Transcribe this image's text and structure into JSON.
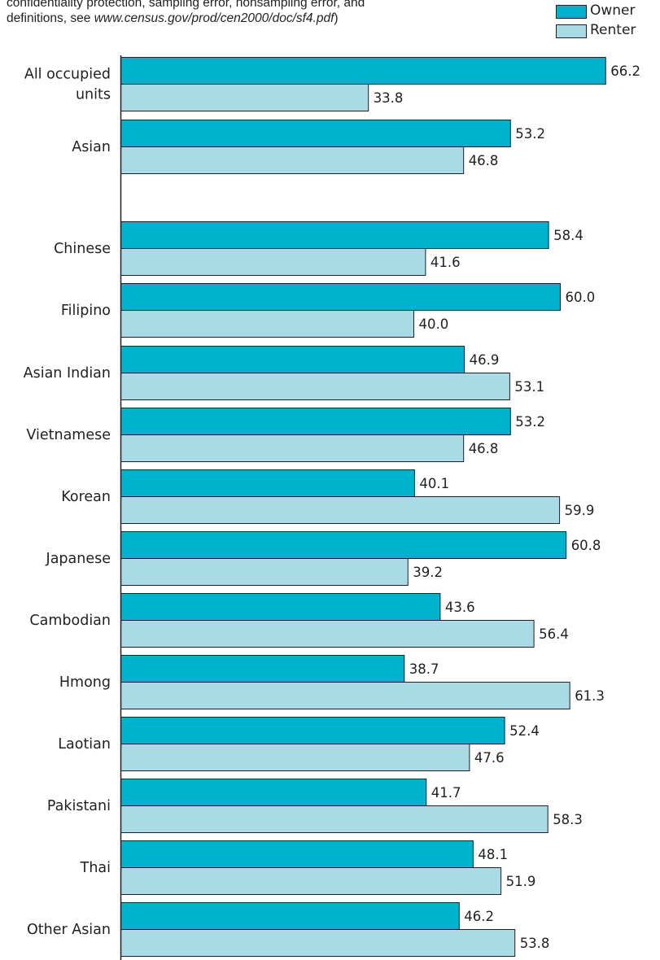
{
  "note": {
    "line1": "confidentiality protection, sampling error, nonsampling error, and",
    "line2_prefix": "definitions, see ",
    "line2_url": "www.census.gov/prod/cen2000/doc/sf4.pdf",
    "line2_suffix": ")"
  },
  "colors": {
    "owner": "#00b2cd",
    "renter": "#a9dbe6",
    "outline": "#231f20"
  },
  "chart_data": {
    "type": "bar",
    "orientation": "horizontal",
    "categories": [
      "All occupied units",
      "Asian",
      "Chinese",
      "Filipino",
      "Asian Indian",
      "Vietnamese",
      "Korean",
      "Japanese",
      "Cambodian",
      "Hmong",
      "Laotian",
      "Pakistani",
      "Thai",
      "Other Asian"
    ],
    "category_labels": [
      [
        "All occupied",
        "units"
      ],
      [
        "Asian"
      ],
      [
        "Chinese"
      ],
      [
        "Filipino"
      ],
      [
        "Asian Indian"
      ],
      [
        "Vietnamese"
      ],
      [
        "Korean"
      ],
      [
        "Japanese"
      ],
      [
        "Cambodian"
      ],
      [
        "Hmong"
      ],
      [
        "Laotian"
      ],
      [
        "Pakistani"
      ],
      [
        "Thai"
      ],
      [
        "Other Asian"
      ]
    ],
    "series": [
      {
        "name": "Owner",
        "values": [
          66.2,
          53.2,
          58.4,
          60.0,
          46.9,
          53.2,
          40.1,
          60.8,
          43.6,
          38.7,
          52.4,
          41.7,
          48.1,
          46.2
        ]
      },
      {
        "name": "Renter",
        "values": [
          33.8,
          46.8,
          41.6,
          40.0,
          53.1,
          46.8,
          59.9,
          39.2,
          56.4,
          61.3,
          47.6,
          58.3,
          51.9,
          53.8
        ]
      }
    ],
    "data_labels": [
      [
        "66.2",
        "53.2",
        "58.4",
        "60.0",
        "46.9",
        "53.2",
        "40.1",
        "60.8",
        "43.6",
        "38.7",
        "52.4",
        "41.7",
        "48.1",
        "46.2"
      ],
      [
        "33.8",
        "46.8",
        "41.6",
        "40.0",
        "53.1",
        "46.8",
        "59.9",
        "39.2",
        "56.4",
        "61.3",
        "47.6",
        "58.3",
        "51.9",
        "53.8"
      ]
    ],
    "xlim": [
      0,
      100
    ],
    "grid": false,
    "legend": "top-right"
  }
}
